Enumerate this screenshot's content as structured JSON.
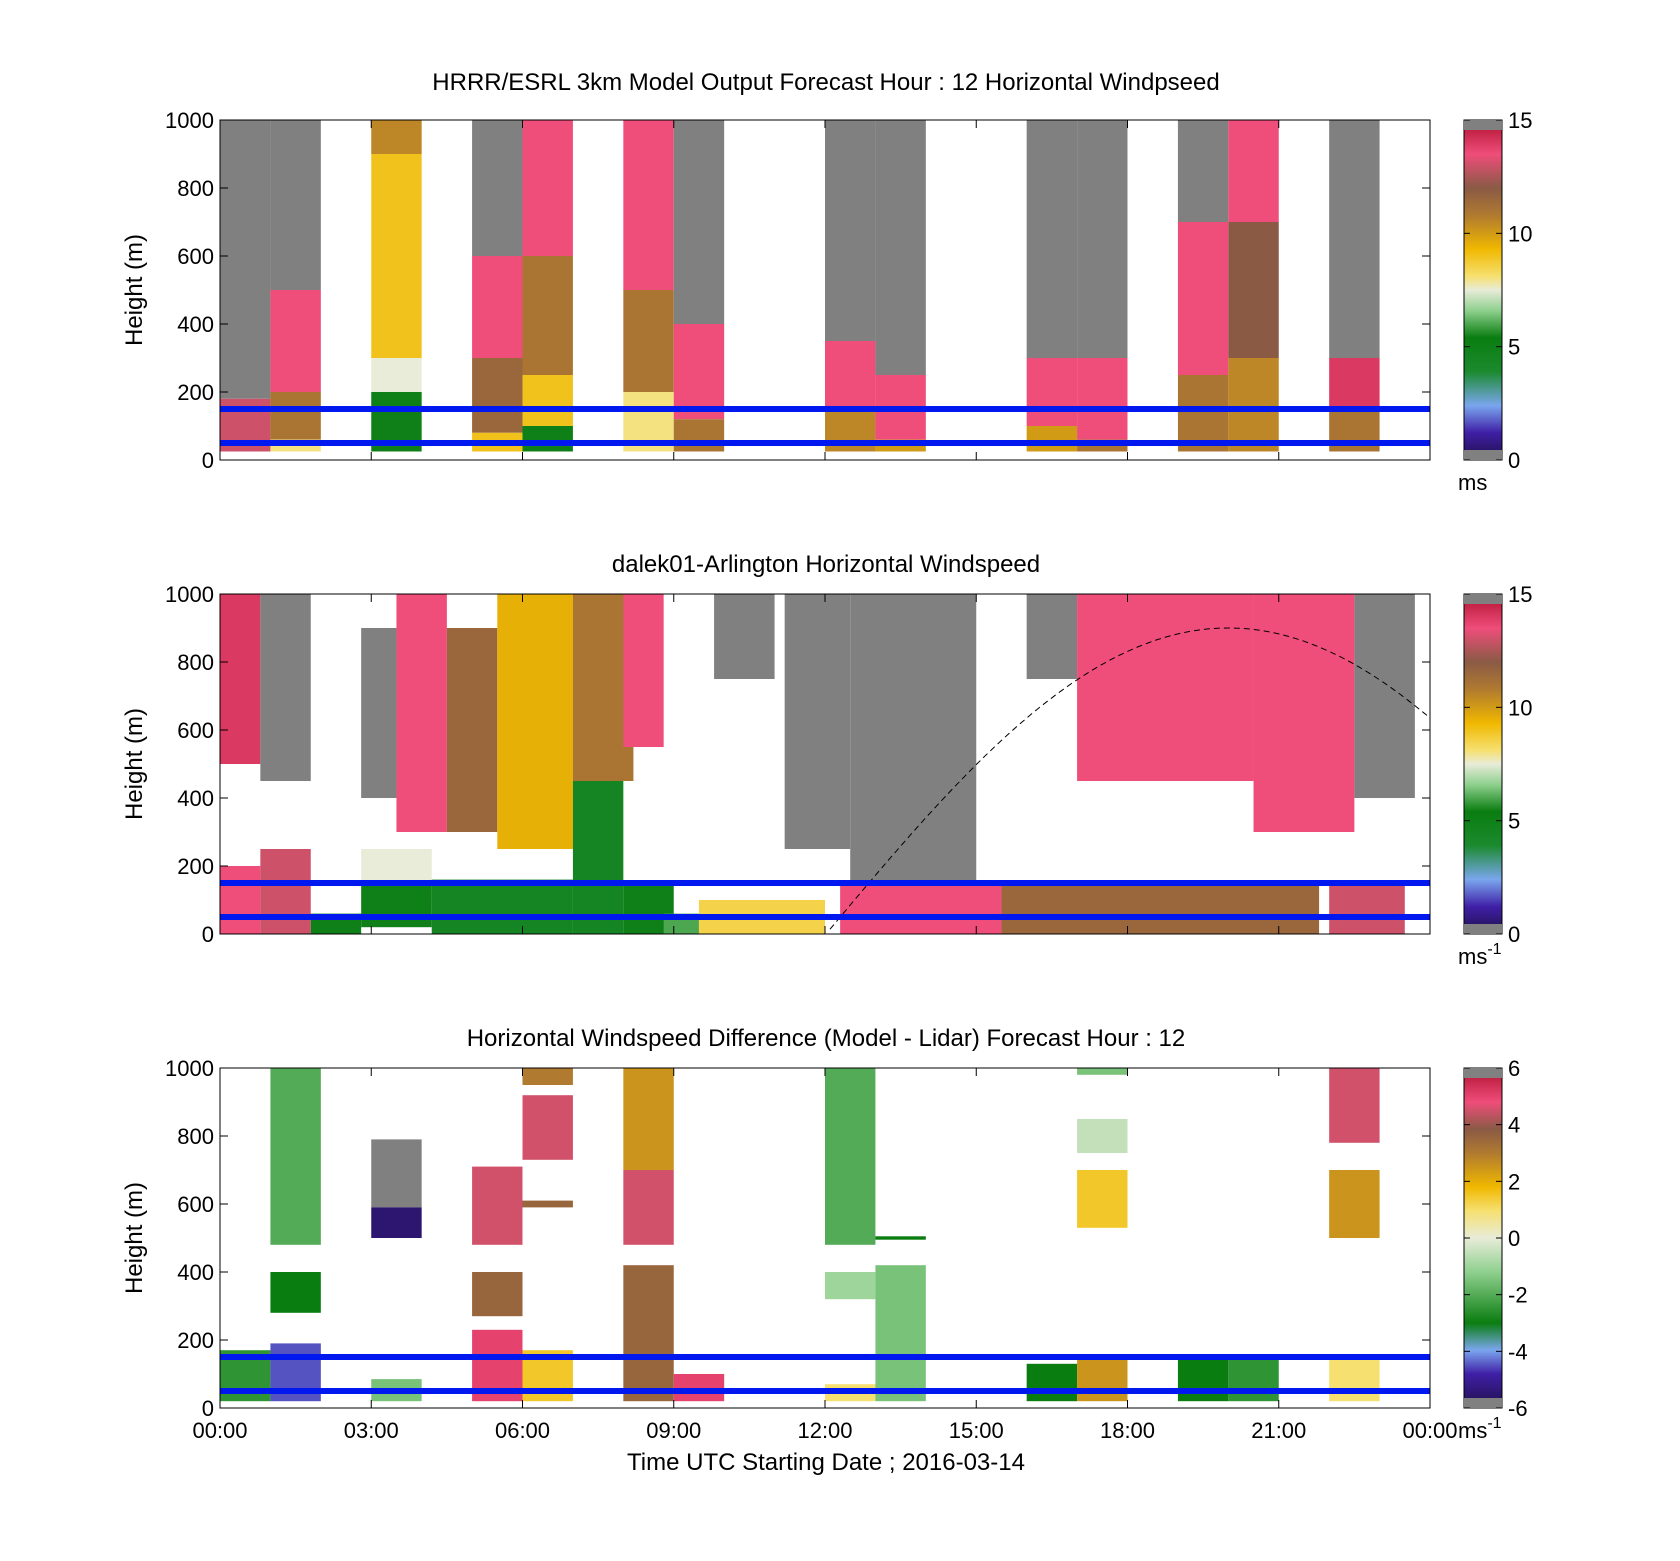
{
  "figure": {
    "xlabel": "Time UTC  Starting Date ; 2016-03-14",
    "x_ticks": [
      "00:00",
      "03:00",
      "06:00",
      "09:00",
      "12:00",
      "15:00",
      "18:00",
      "21:00",
      "00:00"
    ]
  },
  "chart_data": [
    {
      "type": "heatmap",
      "title": "HRRR/ESRL 3km Model Output   Forecast Hour : 12 Horizontal Windpseed",
      "ylabel": "Height (m)",
      "ylim": [
        0,
        1000
      ],
      "y_ticks": [
        "0",
        "200",
        "400",
        "600",
        "800",
        "1000"
      ],
      "x_hours_range": [
        0,
        24
      ],
      "colorbar": {
        "range": [
          0,
          15
        ],
        "ticks": [
          "0",
          "5",
          "10",
          "15"
        ],
        "unit": "ms",
        "unit_superscript": ""
      },
      "reference_lines_height_m": [
        50,
        150
      ],
      "columns": [
        {
          "start_hour": 0.0,
          "segments": [
            {
              "top": 1000,
              "bottom": 180,
              "value": "gray"
            },
            {
              "top": 180,
              "bottom": 25,
              "value": 13
            }
          ]
        },
        {
          "start_hour": 1.0,
          "segments": [
            {
              "top": 1000,
              "bottom": 500,
              "value": "gray"
            },
            {
              "top": 500,
              "bottom": 200,
              "value": 13.5
            },
            {
              "top": 200,
              "bottom": 60,
              "value": 11
            },
            {
              "top": 60,
              "bottom": 25,
              "value": 8
            }
          ]
        },
        {
          "start_hour": 3.0,
          "segments": [
            {
              "top": 1000,
              "bottom": 900,
              "value": 10.5
            },
            {
              "top": 900,
              "bottom": 300,
              "value": 9
            },
            {
              "top": 300,
              "bottom": 200,
              "value": 7.5
            },
            {
              "top": 200,
              "bottom": 25,
              "value": 5
            }
          ]
        },
        {
          "start_hour": 5.0,
          "segments": [
            {
              "top": 1000,
              "bottom": 600,
              "value": "gray"
            },
            {
              "top": 600,
              "bottom": 300,
              "value": 13.5
            },
            {
              "top": 300,
              "bottom": 80,
              "value": 11.5
            },
            {
              "top": 80,
              "bottom": 25,
              "value": 9
            }
          ]
        },
        {
          "start_hour": 6.0,
          "segments": [
            {
              "top": 1000,
              "bottom": 600,
              "value": 13.5
            },
            {
              "top": 600,
              "bottom": 250,
              "value": 11
            },
            {
              "top": 250,
              "bottom": 100,
              "value": 9
            },
            {
              "top": 100,
              "bottom": 25,
              "value": 5
            }
          ]
        },
        {
          "start_hour": 8.0,
          "segments": [
            {
              "top": 1000,
              "bottom": 500,
              "value": 13.5
            },
            {
              "top": 500,
              "bottom": 200,
              "value": 11
            },
            {
              "top": 200,
              "bottom": 25,
              "value": 8
            }
          ]
        },
        {
          "start_hour": 9.0,
          "segments": [
            {
              "top": 1000,
              "bottom": 400,
              "value": "gray"
            },
            {
              "top": 400,
              "bottom": 120,
              "value": 13.5
            },
            {
              "top": 120,
              "bottom": 25,
              "value": 11
            }
          ]
        },
        {
          "start_hour": 12.0,
          "segments": [
            {
              "top": 1000,
              "bottom": 350,
              "value": "gray"
            },
            {
              "top": 350,
              "bottom": 150,
              "value": 13.5
            },
            {
              "top": 150,
              "bottom": 25,
              "value": 10.5
            }
          ]
        },
        {
          "start_hour": 13.0,
          "segments": [
            {
              "top": 1000,
              "bottom": 250,
              "value": "gray"
            },
            {
              "top": 250,
              "bottom": 60,
              "value": 13.5
            },
            {
              "top": 60,
              "bottom": 25,
              "value": 10
            }
          ]
        },
        {
          "start_hour": 16.0,
          "segments": [
            {
              "top": 1000,
              "bottom": 300,
              "value": "gray"
            },
            {
              "top": 300,
              "bottom": 100,
              "value": 13.5
            },
            {
              "top": 100,
              "bottom": 25,
              "value": 10
            }
          ]
        },
        {
          "start_hour": 17.0,
          "segments": [
            {
              "top": 1000,
              "bottom": 300,
              "value": "gray"
            },
            {
              "top": 300,
              "bottom": 60,
              "value": 13.5
            },
            {
              "top": 60,
              "bottom": 25,
              "value": 11
            }
          ]
        },
        {
          "start_hour": 19.0,
          "segments": [
            {
              "top": 1000,
              "bottom": 700,
              "value": "gray"
            },
            {
              "top": 700,
              "bottom": 250,
              "value": 13.5
            },
            {
              "top": 250,
              "bottom": 25,
              "value": 11
            }
          ]
        },
        {
          "start_hour": 20.0,
          "segments": [
            {
              "top": 1000,
              "bottom": 700,
              "value": 13.5
            },
            {
              "top": 700,
              "bottom": 300,
              "value": 12
            },
            {
              "top": 300,
              "bottom": 25,
              "value": 10.5
            }
          ]
        },
        {
          "start_hour": 22.0,
          "segments": [
            {
              "top": 1000,
              "bottom": 300,
              "value": "gray"
            },
            {
              "top": 300,
              "bottom": 150,
              "value": 14
            },
            {
              "top": 150,
              "bottom": 25,
              "value": 11
            }
          ]
        }
      ]
    },
    {
      "type": "heatmap",
      "title": "dalek01-Arlington  Horizontal Windspeed",
      "ylabel": "Height (m)",
      "ylim": [
        0,
        1000
      ],
      "y_ticks": [
        "0",
        "200",
        "400",
        "600",
        "800",
        "1000"
      ],
      "x_hours_range": [
        0,
        24
      ],
      "colorbar": {
        "range": [
          0,
          15
        ],
        "ticks": [
          "0",
          "5",
          "10",
          "15"
        ],
        "unit": "ms",
        "unit_superscript": "-1"
      },
      "reference_lines_height_m": [
        50,
        150
      ],
      "solar_curve": {
        "peak_hour": 20.0,
        "peak_height_m": 900,
        "half_width_hours": 6.0
      },
      "regions": [
        {
          "x0": 0.0,
          "x1": 0.8,
          "y0": 0,
          "y1": 200,
          "value": 13.5
        },
        {
          "x0": 0.0,
          "x1": 0.8,
          "y0": 500,
          "y1": 1000,
          "value": 14
        },
        {
          "x0": 0.8,
          "x1": 1.8,
          "y0": 450,
          "y1": 1000,
          "value": "gray"
        },
        {
          "x0": 0.8,
          "x1": 1.8,
          "y0": 0,
          "y1": 250,
          "value": 13
        },
        {
          "x0": 1.8,
          "x1": 2.8,
          "y0": 0,
          "y1": 60,
          "value": 5
        },
        {
          "x0": 2.8,
          "x1": 3.5,
          "y0": 400,
          "y1": 900,
          "value": "gray"
        },
        {
          "x0": 2.8,
          "x1": 4.2,
          "y0": 100,
          "y1": 250,
          "value": 7.5
        },
        {
          "x0": 2.8,
          "x1": 4.2,
          "y0": 20,
          "y1": 150,
          "value": 5
        },
        {
          "x0": 3.5,
          "x1": 4.5,
          "y0": 300,
          "y1": 1000,
          "value": 13.5
        },
        {
          "x0": 4.5,
          "x1": 5.5,
          "y0": 300,
          "y1": 900,
          "value": 11.5
        },
        {
          "x0": 4.2,
          "x1": 7.0,
          "y0": 0,
          "y1": 160,
          "value": 4.5
        },
        {
          "x0": 5.5,
          "x1": 7.0,
          "y0": 250,
          "y1": 1000,
          "value": 9.5
        },
        {
          "x0": 7.0,
          "x1": 8.0,
          "y0": 0,
          "y1": 450,
          "value": 4.5
        },
        {
          "x0": 7.0,
          "x1": 8.2,
          "y0": 450,
          "y1": 1000,
          "value": 11
        },
        {
          "x0": 8.0,
          "x1": 9.0,
          "y0": 0,
          "y1": 150,
          "value": 5
        },
        {
          "x0": 8.0,
          "x1": 8.8,
          "y0": 550,
          "y1": 1000,
          "value": 13.5
        },
        {
          "x0": 8.8,
          "x1": 9.5,
          "y0": 0,
          "y1": 60,
          "value": 6
        },
        {
          "x0": 9.5,
          "x1": 12.0,
          "y0": 0,
          "y1": 100,
          "value": 8.5
        },
        {
          "x0": 9.8,
          "x1": 11.0,
          "y0": 750,
          "y1": 1000,
          "value": "gray"
        },
        {
          "x0": 11.2,
          "x1": 12.5,
          "y0": 250,
          "y1": 1000,
          "value": "gray"
        },
        {
          "x0": 12.5,
          "x1": 15.0,
          "y0": 150,
          "y1": 1000,
          "value": "gray"
        },
        {
          "x0": 12.3,
          "x1": 15.5,
          "y0": 0,
          "y1": 150,
          "value": 13.5
        },
        {
          "x0": 15.5,
          "x1": 21.8,
          "y0": 0,
          "y1": 150,
          "value": 11.5
        },
        {
          "x0": 16.0,
          "x1": 17.0,
          "y0": 750,
          "y1": 1000,
          "value": "gray"
        },
        {
          "x0": 17.0,
          "x1": 20.5,
          "y0": 450,
          "y1": 1000,
          "value": 13.5
        },
        {
          "x0": 20.5,
          "x1": 22.5,
          "y0": 300,
          "y1": 1000,
          "value": 13.5
        },
        {
          "x0": 22.5,
          "x1": 23.7,
          "y0": 400,
          "y1": 1000,
          "value": "gray"
        },
        {
          "x0": 22.0,
          "x1": 23.5,
          "y0": 0,
          "y1": 150,
          "value": 13
        }
      ]
    },
    {
      "type": "heatmap",
      "title": "Horizontal Windspeed Difference (Model - Lidar) Forecast Hour : 12",
      "ylabel": "Height (m)",
      "ylim": [
        0,
        1000
      ],
      "y_ticks": [
        "0",
        "200",
        "400",
        "600",
        "800",
        "1000"
      ],
      "x_hours_range": [
        0,
        24
      ],
      "colorbar": {
        "range": [
          -6,
          6
        ],
        "ticks": [
          "-6",
          "-4",
          "-2",
          "0",
          "2",
          "4",
          "6"
        ],
        "unit": "ms",
        "unit_superscript": "-1"
      },
      "reference_lines_height_m": [
        50,
        150
      ],
      "regions": [
        {
          "x0": 0.0,
          "x1": 1.0,
          "y0": 20,
          "y1": 170,
          "value": -2.5
        },
        {
          "x0": 1.0,
          "x1": 2.0,
          "y0": 20,
          "y1": 190,
          "value": -4.5
        },
        {
          "x0": 1.0,
          "x1": 2.0,
          "y0": 480,
          "y1": 1000,
          "value": -2
        },
        {
          "x0": 1.0,
          "x1": 2.0,
          "y0": 280,
          "y1": 400,
          "value": -3
        },
        {
          "x0": 3.0,
          "x1": 4.0,
          "y0": 590,
          "y1": 790,
          "value": "gray"
        },
        {
          "x0": 3.0,
          "x1": 4.0,
          "y0": 500,
          "y1": 590,
          "value": -5.5
        },
        {
          "x0": 3.0,
          "x1": 4.0,
          "y0": 20,
          "y1": 85,
          "value": -1.5
        },
        {
          "x0": 5.0,
          "x1": 6.0,
          "y0": 480,
          "y1": 710,
          "value": 4.5
        },
        {
          "x0": 5.0,
          "x1": 6.0,
          "y0": 270,
          "y1": 400,
          "value": 3.5
        },
        {
          "x0": 5.0,
          "x1": 6.0,
          "y0": 20,
          "y1": 230,
          "value": 5
        },
        {
          "x0": 6.0,
          "x1": 7.0,
          "y0": 950,
          "y1": 1000,
          "value": 3
        },
        {
          "x0": 6.0,
          "x1": 7.0,
          "y0": 730,
          "y1": 920,
          "value": 4.5
        },
        {
          "x0": 6.0,
          "x1": 7.0,
          "y0": 590,
          "y1": 610,
          "value": 3.5
        },
        {
          "x0": 6.0,
          "x1": 7.0,
          "y0": 20,
          "y1": 170,
          "value": 1.5
        },
        {
          "x0": 8.0,
          "x1": 9.0,
          "y0": 700,
          "y1": 1000,
          "value": 2.5
        },
        {
          "x0": 8.0,
          "x1": 9.0,
          "y0": 480,
          "y1": 700,
          "value": 4.5
        },
        {
          "x0": 8.0,
          "x1": 9.0,
          "y0": 20,
          "y1": 420,
          "value": 3.5
        },
        {
          "x0": 9.0,
          "x1": 10.0,
          "y0": 20,
          "y1": 100,
          "value": 5
        },
        {
          "x0": 12.0,
          "x1": 13.0,
          "y0": 480,
          "y1": 1000,
          "value": -2
        },
        {
          "x0": 12.0,
          "x1": 13.0,
          "y0": 320,
          "y1": 400,
          "value": -1
        },
        {
          "x0": 12.0,
          "x1": 13.0,
          "y0": 20,
          "y1": 70,
          "value": 1
        },
        {
          "x0": 13.0,
          "x1": 14.0,
          "y0": 20,
          "y1": 420,
          "value": -1.5
        },
        {
          "x0": 13.0,
          "x1": 14.0,
          "y0": 495,
          "y1": 505,
          "value": -3
        },
        {
          "x0": 16.0,
          "x1": 17.0,
          "y0": 20,
          "y1": 130,
          "value": -3
        },
        {
          "x0": 17.0,
          "x1": 18.0,
          "y0": 20,
          "y1": 150,
          "value": 2.5
        },
        {
          "x0": 17.0,
          "x1": 18.0,
          "y0": 530,
          "y1": 700,
          "value": 1.5
        },
        {
          "x0": 17.0,
          "x1": 18.0,
          "y0": 750,
          "y1": 850,
          "value": -0.5
        },
        {
          "x0": 17.0,
          "x1": 18.0,
          "y0": 980,
          "y1": 1000,
          "value": -1.5
        },
        {
          "x0": 19.0,
          "x1": 20.0,
          "y0": 20,
          "y1": 150,
          "value": -3
        },
        {
          "x0": 20.0,
          "x1": 21.0,
          "y0": 20,
          "y1": 150,
          "value": -2.5
        },
        {
          "x0": 22.0,
          "x1": 23.0,
          "y0": 20,
          "y1": 150,
          "value": 1
        },
        {
          "x0": 22.0,
          "x1": 23.0,
          "y0": 500,
          "y1": 700,
          "value": 2.5
        },
        {
          "x0": 22.0,
          "x1": 23.0,
          "y0": 780,
          "y1": 1000,
          "value": 4.5
        }
      ]
    }
  ]
}
